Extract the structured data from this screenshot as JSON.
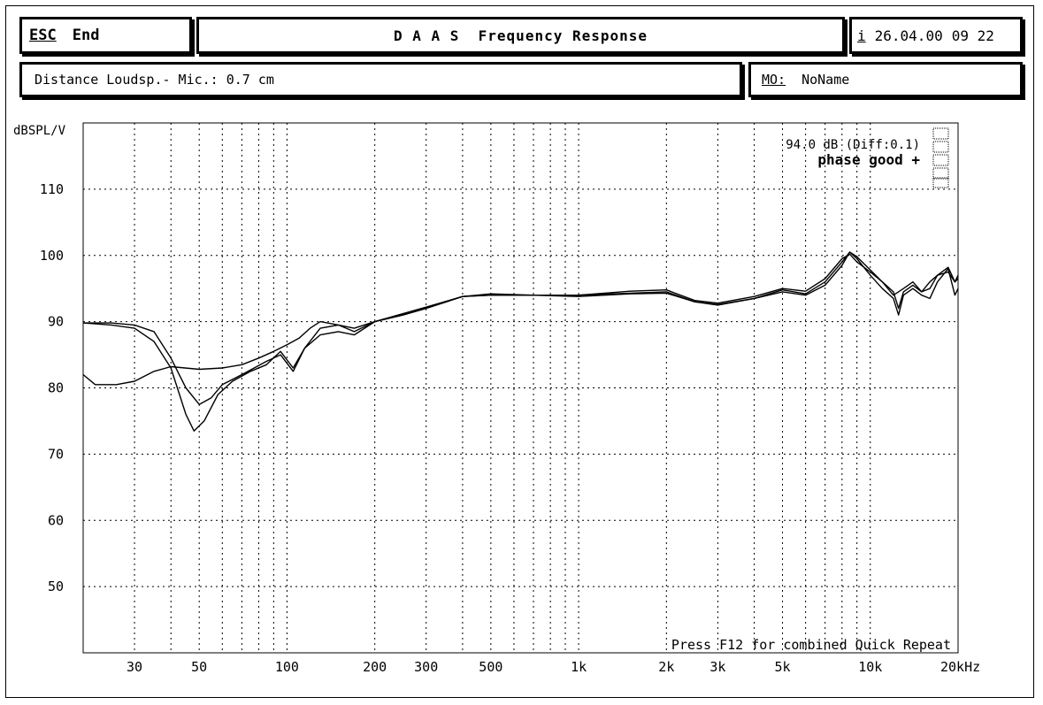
{
  "header": {
    "esc_key": "ESC",
    "esc_label": "End",
    "title": "D A A S  Frequency Response",
    "info_key": "i",
    "date": "26.04.00",
    "time": "09 22"
  },
  "subheader": {
    "distance": "Distance Loudsp.- Mic.: 0.7 cm",
    "mo_key": "MO:",
    "mo_value": "NoName"
  },
  "status": {
    "level": "94.0 dB (Diff:0.1)",
    "phase": "phase good +",
    "footer_hint": "Press F12 for combined Quick Repeat"
  },
  "chart_data": {
    "type": "line",
    "xscale": "log",
    "xlim": [
      20,
      20000
    ],
    "ylim": [
      40,
      120
    ],
    "ylabel": "dBSPL/V",
    "xlabel": "",
    "unit_suffix": "kHz",
    "grid": true,
    "yticks": [
      50,
      60,
      70,
      80,
      90,
      100,
      110
    ],
    "xticks": [
      {
        "v": 30,
        "label": "30"
      },
      {
        "v": 50,
        "label": "50"
      },
      {
        "v": 100,
        "label": "100"
      },
      {
        "v": 200,
        "label": "200"
      },
      {
        "v": 300,
        "label": "300"
      },
      {
        "v": 500,
        "label": "500"
      },
      {
        "v": 1000,
        "label": "1k"
      },
      {
        "v": 2000,
        "label": "2k"
      },
      {
        "v": 3000,
        "label": "3k"
      },
      {
        "v": 5000,
        "label": "5k"
      },
      {
        "v": 10000,
        "label": "10k"
      },
      {
        "v": 20000,
        "label": "20kHz"
      }
    ],
    "series": [
      {
        "values": [
          [
            20,
            89.8
          ],
          [
            25,
            89.5
          ],
          [
            30,
            89
          ],
          [
            35,
            87
          ],
          [
            40,
            83
          ],
          [
            45,
            76
          ],
          [
            48,
            73.5
          ],
          [
            52,
            75
          ],
          [
            58,
            79
          ],
          [
            65,
            81
          ],
          [
            75,
            82.5
          ],
          [
            85,
            83.5
          ],
          [
            95,
            85.5
          ],
          [
            105,
            83
          ],
          [
            115,
            86
          ],
          [
            130,
            88
          ],
          [
            150,
            88.5
          ],
          [
            170,
            88
          ],
          [
            200,
            90
          ],
          [
            250,
            91
          ],
          [
            300,
            92
          ],
          [
            400,
            93.8
          ],
          [
            500,
            94.2
          ],
          [
            700,
            94
          ],
          [
            1000,
            93.8
          ],
          [
            1500,
            94.2
          ],
          [
            2000,
            94.3
          ],
          [
            2500,
            93
          ],
          [
            3000,
            92.5
          ],
          [
            4000,
            93.5
          ],
          [
            5000,
            94.5
          ],
          [
            6000,
            94
          ],
          [
            7000,
            95.5
          ],
          [
            8000,
            98.5
          ],
          [
            8500,
            100.5
          ],
          [
            9000,
            99.5
          ],
          [
            10000,
            97
          ],
          [
            11000,
            95
          ],
          [
            12000,
            93.5
          ],
          [
            12500,
            91
          ],
          [
            13000,
            94
          ],
          [
            14000,
            95
          ],
          [
            15000,
            94
          ],
          [
            16000,
            93.5
          ],
          [
            17000,
            96
          ],
          [
            18500,
            98
          ],
          [
            19500,
            94
          ],
          [
            20000,
            95
          ]
        ]
      },
      {
        "values": [
          [
            20,
            89.8
          ],
          [
            25,
            89.8
          ],
          [
            30,
            89.5
          ],
          [
            35,
            88.5
          ],
          [
            40,
            84.5
          ],
          [
            45,
            80
          ],
          [
            50,
            77.5
          ],
          [
            55,
            78.5
          ],
          [
            60,
            80.5
          ],
          [
            70,
            82
          ],
          [
            85,
            84
          ],
          [
            95,
            85
          ],
          [
            105,
            82.5
          ],
          [
            115,
            86
          ],
          [
            130,
            89
          ],
          [
            150,
            89.5
          ],
          [
            170,
            88.5
          ],
          [
            200,
            90
          ],
          [
            250,
            91
          ],
          [
            300,
            92
          ],
          [
            400,
            93.8
          ],
          [
            500,
            94
          ],
          [
            700,
            94
          ],
          [
            1000,
            94
          ],
          [
            1500,
            94.6
          ],
          [
            2000,
            94.8
          ],
          [
            2500,
            93.2
          ],
          [
            3000,
            92.8
          ],
          [
            4000,
            93.8
          ],
          [
            5000,
            95
          ],
          [
            6000,
            94.6
          ],
          [
            7000,
            96.5
          ],
          [
            8000,
            99.5
          ],
          [
            8500,
            100.2
          ],
          [
            9000,
            99
          ],
          [
            10000,
            97.5
          ],
          [
            11000,
            96
          ],
          [
            12000,
            94
          ],
          [
            13000,
            95
          ],
          [
            14000,
            96
          ],
          [
            15000,
            94.5
          ],
          [
            16000,
            96
          ],
          [
            17000,
            97
          ],
          [
            18500,
            98.2
          ],
          [
            19500,
            96
          ],
          [
            20000,
            97
          ]
        ]
      },
      {
        "values": [
          [
            20,
            82
          ],
          [
            22,
            80.5
          ],
          [
            26,
            80.5
          ],
          [
            30,
            81
          ],
          [
            35,
            82.5
          ],
          [
            40,
            83.2
          ],
          [
            50,
            82.8
          ],
          [
            60,
            83
          ],
          [
            70,
            83.5
          ],
          [
            80,
            84.5
          ],
          [
            90,
            85.5
          ],
          [
            100,
            86.5
          ],
          [
            110,
            87.5
          ],
          [
            120,
            89
          ],
          [
            130,
            90
          ],
          [
            150,
            89.5
          ],
          [
            170,
            89
          ],
          [
            200,
            90
          ],
          [
            250,
            91.2
          ],
          [
            300,
            92.2
          ],
          [
            400,
            93.8
          ],
          [
            500,
            94
          ],
          [
            700,
            94
          ],
          [
            1000,
            94
          ],
          [
            1500,
            94.3
          ],
          [
            2000,
            94.5
          ],
          [
            2500,
            93
          ],
          [
            3000,
            92.6
          ],
          [
            4000,
            93.5
          ],
          [
            5000,
            94.8
          ],
          [
            6000,
            94.2
          ],
          [
            7000,
            96
          ],
          [
            8000,
            99
          ],
          [
            8500,
            100.5
          ],
          [
            9000,
            99.8
          ],
          [
            10000,
            97.8
          ],
          [
            11000,
            96
          ],
          [
            12000,
            94.5
          ],
          [
            12500,
            92
          ],
          [
            13000,
            94.5
          ],
          [
            14000,
            95.5
          ],
          [
            15000,
            94.5
          ],
          [
            16000,
            95
          ],
          [
            17000,
            97
          ],
          [
            18500,
            97.5
          ],
          [
            19500,
            96
          ],
          [
            20000,
            96.5
          ]
        ]
      }
    ]
  }
}
